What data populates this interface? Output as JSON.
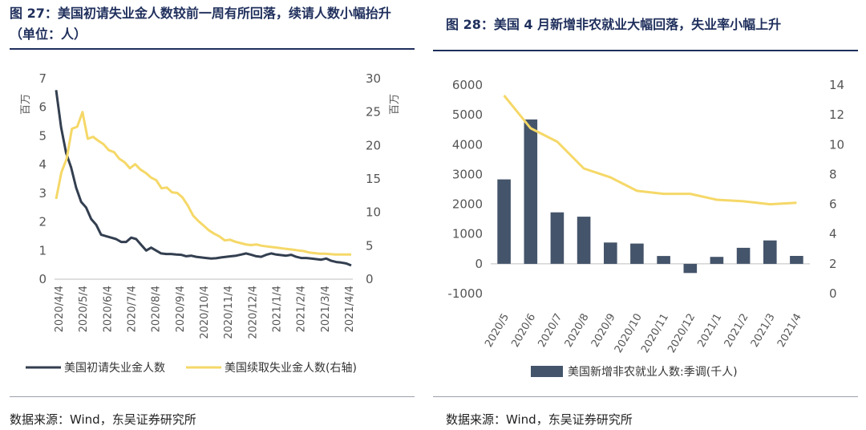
{
  "left_panel": {
    "title": "图 27：美国初请失业金人数较前一周有所回落，续请人数小幅抬升（单位：人）",
    "source": "数据来源：Wind，东吴证券研究所"
  },
  "right_panel": {
    "title": "图 28：美国 4 月新增非农就业大幅回落，失业率小幅上升",
    "source": "数据来源：Wind，东吴证券研究所"
  },
  "chart_data": [
    {
      "type": "line",
      "left_unit": "百万",
      "right_unit": "百万",
      "ylim_left": [
        0,
        7
      ],
      "ylim_right": [
        0,
        30
      ],
      "yticks_left": [
        0,
        1,
        2,
        3,
        4,
        5,
        6,
        7
      ],
      "yticks_right": [
        0,
        5,
        10,
        15,
        20,
        25,
        30
      ],
      "x_tick_labels": [
        "2020/4/4",
        "2020/5/4",
        "2020/6/4",
        "2020/7/4",
        "2020/8/4",
        "2020/9/4",
        "2020/10/4",
        "2020/11/4",
        "2020/12/4",
        "2021/1/4",
        "2021/2/4",
        "2021/3/4",
        "2021/4/4"
      ],
      "legend_position": "bottom",
      "series": [
        {
          "name": "美国初请失业金人数",
          "axis": "left",
          "color": "#333f50",
          "values": [
            6.6,
            5.3,
            4.4,
            3.9,
            3.2,
            2.7,
            2.5,
            2.1,
            1.9,
            1.55,
            1.5,
            1.45,
            1.4,
            1.3,
            1.3,
            1.45,
            1.4,
            1.2,
            1.0,
            1.1,
            1.0,
            0.9,
            0.88,
            0.88,
            0.86,
            0.85,
            0.8,
            0.82,
            0.78,
            0.76,
            0.74,
            0.72,
            0.73,
            0.76,
            0.78,
            0.8,
            0.82,
            0.86,
            0.9,
            0.85,
            0.8,
            0.78,
            0.85,
            0.9,
            0.86,
            0.84,
            0.82,
            0.85,
            0.78,
            0.74,
            0.74,
            0.72,
            0.7,
            0.68,
            0.72,
            0.64,
            0.6,
            0.58,
            0.55,
            0.48
          ]
        },
        {
          "name": "美国续取失业金人数(右轴)",
          "axis": "right",
          "color": "#f5d868",
          "values": [
            12,
            16,
            18,
            22.5,
            22.8,
            25,
            21,
            21.3,
            20.7,
            20.2,
            19.3,
            19,
            18,
            17.5,
            16.6,
            17.2,
            16.4,
            15.9,
            15.2,
            14.8,
            13.6,
            13.7,
            13.0,
            12.9,
            12.2,
            11,
            9.5,
            8.7,
            8,
            7.3,
            6.8,
            6.4,
            5.8,
            5.9,
            5.6,
            5.4,
            5.2,
            5.1,
            5.2,
            5.0,
            4.9,
            4.8,
            4.7,
            4.6,
            4.5,
            4.4,
            4.3,
            4.2,
            4.0,
            3.9,
            3.8,
            3.8,
            3.75,
            3.7,
            3.7,
            3.7,
            3.7
          ]
        }
      ]
    },
    {
      "type": "bar+line",
      "ylim_left": [
        -1000,
        6000
      ],
      "ylim_right": [
        0,
        14
      ],
      "yticks_left": [
        -1000,
        0,
        1000,
        2000,
        3000,
        4000,
        5000,
        6000
      ],
      "yticks_right": [
        0,
        2,
        4,
        6,
        8,
        10,
        12,
        14
      ],
      "categories": [
        "2020/5",
        "2020/6",
        "2020/7",
        "2020/8",
        "2020/9",
        "2020/10",
        "2020/11",
        "2020/12",
        "2021/1",
        "2021/2",
        "2021/3",
        "2021/4"
      ],
      "legend_position": "bottom",
      "series": [
        {
          "name": "美国新增非农就业人数:季调(千人)",
          "kind": "bar",
          "axis": "left",
          "color": "#44546a",
          "values": [
            2833,
            4846,
            1726,
            1583,
            716,
            680,
            264,
            -306,
            233,
            536,
            785,
            266
          ]
        },
        {
          "kind": "line",
          "axis": "right",
          "color": "#f5d868",
          "values": [
            13.3,
            11.1,
            10.2,
            8.4,
            7.8,
            6.9,
            6.7,
            6.7,
            6.3,
            6.2,
            6.0,
            6.1
          ]
        }
      ]
    }
  ]
}
